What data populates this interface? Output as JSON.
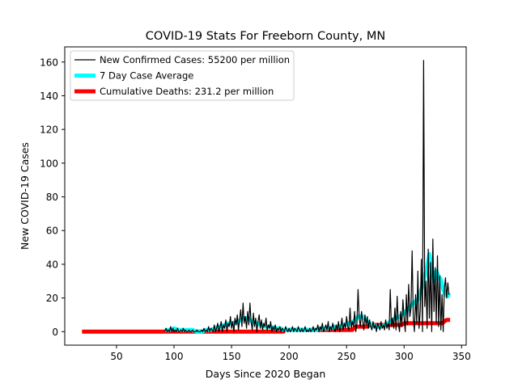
{
  "chart_data": {
    "type": "line",
    "title": "COVID-19 Stats For Freeborn County, MN",
    "xlabel": "Days Since 2020 Began",
    "ylabel": "New COVID-19 Cases",
    "xlim": [
      5,
      354
    ],
    "ylim": [
      -8,
      169
    ],
    "xticks": [
      50,
      100,
      150,
      200,
      250,
      300,
      350
    ],
    "yticks": [
      0,
      20,
      40,
      60,
      80,
      100,
      120,
      140,
      160
    ],
    "grid": false,
    "legend_position": "top-left",
    "series": [
      {
        "name": "New Confirmed Cases: 55200 per million",
        "color": "#000000",
        "points": [
          [
            92,
            0
          ],
          [
            93,
            2
          ],
          [
            94,
            0
          ],
          [
            95,
            1
          ],
          [
            96,
            0
          ],
          [
            97,
            3
          ],
          [
            98,
            0
          ],
          [
            99,
            2
          ],
          [
            100,
            0
          ],
          [
            101,
            1
          ],
          [
            102,
            0
          ],
          [
            103,
            2
          ],
          [
            104,
            0
          ],
          [
            105,
            0
          ],
          [
            106,
            1
          ],
          [
            107,
            0
          ],
          [
            108,
            2
          ],
          [
            109,
            0
          ],
          [
            110,
            1
          ],
          [
            111,
            0
          ],
          [
            112,
            0
          ],
          [
            113,
            1
          ],
          [
            114,
            0
          ],
          [
            115,
            0
          ],
          [
            116,
            1
          ],
          [
            117,
            0
          ],
          [
            118,
            0
          ],
          [
            119,
            0
          ],
          [
            120,
            1
          ],
          [
            121,
            0
          ],
          [
            122,
            0
          ],
          [
            123,
            0
          ],
          [
            124,
            1
          ],
          [
            125,
            0
          ],
          [
            126,
            2
          ],
          [
            127,
            0
          ],
          [
            128,
            1
          ],
          [
            129,
            0
          ],
          [
            130,
            3
          ],
          [
            131,
            0
          ],
          [
            132,
            2
          ],
          [
            133,
            1
          ],
          [
            134,
            0
          ],
          [
            135,
            4
          ],
          [
            136,
            0
          ],
          [
            137,
            2
          ],
          [
            138,
            5
          ],
          [
            139,
            0
          ],
          [
            140,
            3
          ],
          [
            141,
            6
          ],
          [
            142,
            0
          ],
          [
            143,
            4
          ],
          [
            144,
            2
          ],
          [
            145,
            7
          ],
          [
            146,
            0
          ],
          [
            147,
            5
          ],
          [
            148,
            3
          ],
          [
            149,
            9
          ],
          [
            150,
            2
          ],
          [
            151,
            6
          ],
          [
            152,
            0
          ],
          [
            153,
            8
          ],
          [
            154,
            4
          ],
          [
            155,
            10
          ],
          [
            156,
            1
          ],
          [
            157,
            7
          ],
          [
            158,
            13
          ],
          [
            159,
            3
          ],
          [
            160,
            17
          ],
          [
            161,
            5
          ],
          [
            162,
            9
          ],
          [
            163,
            2
          ],
          [
            164,
            12
          ],
          [
            165,
            4
          ],
          [
            166,
            17
          ],
          [
            167,
            6
          ],
          [
            168,
            1
          ],
          [
            169,
            11
          ],
          [
            170,
            3
          ],
          [
            171,
            8
          ],
          [
            172,
            0
          ],
          [
            173,
            6
          ],
          [
            174,
            10
          ],
          [
            175,
            2
          ],
          [
            176,
            7
          ],
          [
            177,
            1
          ],
          [
            178,
            5
          ],
          [
            179,
            3
          ],
          [
            180,
            8
          ],
          [
            181,
            1
          ],
          [
            182,
            4
          ],
          [
            183,
            2
          ],
          [
            184,
            6
          ],
          [
            185,
            0
          ],
          [
            186,
            3
          ],
          [
            187,
            1
          ],
          [
            188,
            4
          ],
          [
            189,
            0
          ],
          [
            190,
            2
          ],
          [
            191,
            1
          ],
          [
            192,
            3
          ],
          [
            193,
            0
          ],
          [
            194,
            2
          ],
          [
            195,
            1
          ],
          [
            196,
            0
          ],
          [
            197,
            3
          ],
          [
            198,
            1
          ],
          [
            199,
            0
          ],
          [
            200,
            2
          ],
          [
            201,
            0
          ],
          [
            202,
            1
          ],
          [
            203,
            3
          ],
          [
            204,
            0
          ],
          [
            205,
            2
          ],
          [
            206,
            1
          ],
          [
            207,
            0
          ],
          [
            208,
            3
          ],
          [
            209,
            1
          ],
          [
            210,
            0
          ],
          [
            211,
            2
          ],
          [
            212,
            0
          ],
          [
            213,
            1
          ],
          [
            214,
            3
          ],
          [
            215,
            0
          ],
          [
            216,
            1
          ],
          [
            217,
            0
          ],
          [
            218,
            2
          ],
          [
            219,
            0
          ],
          [
            220,
            1
          ],
          [
            221,
            3
          ],
          [
            222,
            0
          ],
          [
            223,
            2
          ],
          [
            224,
            1
          ],
          [
            225,
            4
          ],
          [
            226,
            0
          ],
          [
            227,
            3
          ],
          [
            228,
            1
          ],
          [
            229,
            5
          ],
          [
            230,
            0
          ],
          [
            231,
            2
          ],
          [
            232,
            4
          ],
          [
            233,
            1
          ],
          [
            234,
            6
          ],
          [
            235,
            0
          ],
          [
            236,
            3
          ],
          [
            237,
            1
          ],
          [
            238,
            5
          ],
          [
            239,
            2
          ],
          [
            240,
            0
          ],
          [
            241,
            4
          ],
          [
            242,
            1
          ],
          [
            243,
            6
          ],
          [
            244,
            0
          ],
          [
            245,
            3
          ],
          [
            246,
            8
          ],
          [
            247,
            1
          ],
          [
            248,
            5
          ],
          [
            249,
            2
          ],
          [
            250,
            9
          ],
          [
            251,
            3
          ],
          [
            252,
            1
          ],
          [
            253,
            14
          ],
          [
            254,
            2
          ],
          [
            255,
            6
          ],
          [
            256,
            3
          ],
          [
            257,
            12
          ],
          [
            258,
            0
          ],
          [
            259,
            5
          ],
          [
            260,
            25
          ],
          [
            261,
            8
          ],
          [
            262,
            3
          ],
          [
            263,
            12
          ],
          [
            264,
            6
          ],
          [
            265,
            1
          ],
          [
            266,
            10
          ],
          [
            267,
            4
          ],
          [
            268,
            9
          ],
          [
            269,
            2
          ],
          [
            270,
            7
          ],
          [
            271,
            3
          ],
          [
            272,
            1
          ],
          [
            273,
            6
          ],
          [
            274,
            2
          ],
          [
            275,
            4
          ],
          [
            276,
            0
          ],
          [
            277,
            5
          ],
          [
            278,
            3
          ],
          [
            279,
            1
          ],
          [
            280,
            6
          ],
          [
            281,
            2
          ],
          [
            282,
            4
          ],
          [
            283,
            1
          ],
          [
            284,
            7
          ],
          [
            285,
            2
          ],
          [
            286,
            5
          ],
          [
            287,
            1
          ],
          [
            288,
            25
          ],
          [
            289,
            3
          ],
          [
            290,
            8
          ],
          [
            291,
            2
          ],
          [
            292,
            14
          ],
          [
            293,
            1
          ],
          [
            294,
            21
          ],
          [
            295,
            5
          ],
          [
            296,
            0
          ],
          [
            297,
            12
          ],
          [
            298,
            3
          ],
          [
            299,
            19
          ],
          [
            300,
            8
          ],
          [
            301,
            0
          ],
          [
            302,
            22
          ],
          [
            303,
            4
          ],
          [
            304,
            28
          ],
          [
            305,
            9
          ],
          [
            306,
            14
          ],
          [
            307,
            48
          ],
          [
            308,
            8
          ],
          [
            309,
            0
          ],
          [
            310,
            22
          ],
          [
            311,
            5
          ],
          [
            312,
            36
          ],
          [
            313,
            2
          ],
          [
            314,
            12
          ],
          [
            315,
            43
          ],
          [
            316,
            0
          ],
          [
            317,
            161
          ],
          [
            318,
            15
          ],
          [
            319,
            30
          ],
          [
            320,
            2
          ],
          [
            321,
            49
          ],
          [
            322,
            8
          ],
          [
            323,
            41
          ],
          [
            324,
            0
          ],
          [
            325,
            55
          ],
          [
            326,
            12
          ],
          [
            327,
            38
          ],
          [
            328,
            5
          ],
          [
            329,
            45
          ],
          [
            330,
            3
          ],
          [
            331,
            33
          ],
          [
            332,
            1
          ],
          [
            333,
            22
          ],
          [
            334,
            0
          ],
          [
            335,
            25
          ],
          [
            336,
            32
          ],
          [
            337,
            20
          ],
          [
            338,
            29
          ],
          [
            339,
            22
          ]
        ]
      },
      {
        "name": "7 Day Case Average",
        "color": "#00ffff",
        "points": [
          [
            92,
            1
          ],
          [
            96,
            1
          ],
          [
            100,
            2
          ],
          [
            104,
            1
          ],
          [
            108,
            1
          ],
          [
            112,
            1
          ],
          [
            116,
            1
          ],
          [
            120,
            0
          ],
          [
            124,
            0
          ],
          [
            128,
            1
          ],
          [
            132,
            1
          ],
          [
            136,
            2
          ],
          [
            140,
            3
          ],
          [
            144,
            4
          ],
          [
            148,
            5
          ],
          [
            152,
            5
          ],
          [
            156,
            6
          ],
          [
            160,
            8
          ],
          [
            164,
            8
          ],
          [
            168,
            6
          ],
          [
            172,
            5
          ],
          [
            176,
            4
          ],
          [
            180,
            3
          ],
          [
            184,
            3
          ],
          [
            188,
            2
          ],
          [
            192,
            2
          ],
          [
            196,
            1
          ],
          [
            200,
            1
          ],
          [
            204,
            1
          ],
          [
            208,
            1
          ],
          [
            212,
            1
          ],
          [
            216,
            1
          ],
          [
            220,
            1
          ],
          [
            224,
            1
          ],
          [
            228,
            2
          ],
          [
            232,
            2
          ],
          [
            236,
            2
          ],
          [
            240,
            3
          ],
          [
            244,
            3
          ],
          [
            248,
            4
          ],
          [
            252,
            5
          ],
          [
            256,
            6
          ],
          [
            260,
            9
          ],
          [
            264,
            9
          ],
          [
            268,
            6
          ],
          [
            272,
            4
          ],
          [
            276,
            3
          ],
          [
            280,
            3
          ],
          [
            284,
            4
          ],
          [
            288,
            6
          ],
          [
            292,
            8
          ],
          [
            296,
            9
          ],
          [
            300,
            11
          ],
          [
            304,
            14
          ],
          [
            308,
            17
          ],
          [
            312,
            19
          ],
          [
            316,
            27
          ],
          [
            318,
            33
          ],
          [
            320,
            38
          ],
          [
            322,
            46
          ],
          [
            324,
            37
          ],
          [
            326,
            30
          ],
          [
            328,
            36
          ],
          [
            330,
            33
          ],
          [
            332,
            31
          ],
          [
            334,
            25
          ],
          [
            336,
            22
          ],
          [
            338,
            21
          ],
          [
            339,
            23
          ]
        ]
      },
      {
        "name": "Cumulative Deaths: 231.2 per million",
        "color": "#ff0000",
        "points": [
          [
            20,
            0
          ],
          [
            100,
            0
          ],
          [
            150,
            0
          ],
          [
            195,
            0
          ],
          [
            197,
            1
          ],
          [
            220,
            1
          ],
          [
            255,
            1
          ],
          [
            258,
            3
          ],
          [
            268,
            3
          ],
          [
            270,
            4
          ],
          [
            298,
            4
          ],
          [
            300,
            5
          ],
          [
            333,
            5
          ],
          [
            335,
            6
          ],
          [
            337,
            7
          ],
          [
            340,
            7
          ]
        ]
      }
    ]
  }
}
